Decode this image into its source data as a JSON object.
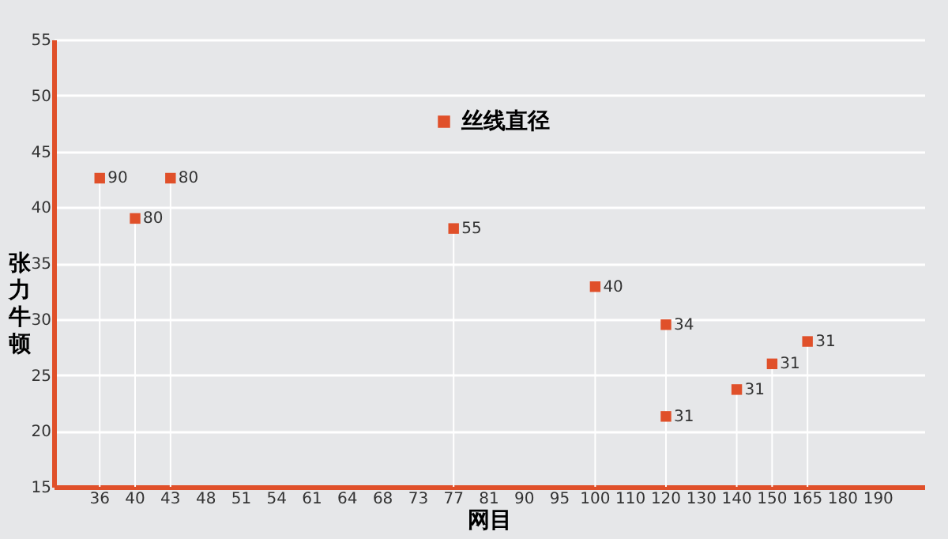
{
  "chart_data": {
    "type": "scatter",
    "xlabel": "网目",
    "ylabel": "张力牛顿",
    "categories": [
      "36",
      "40",
      "43",
      "48",
      "51",
      "54",
      "61",
      "64",
      "68",
      "73",
      "77",
      "81",
      "90",
      "95",
      "100",
      "110",
      "120",
      "130",
      "140",
      "150",
      "165",
      "180",
      "190"
    ],
    "series": [
      {
        "name": "丝线直径",
        "color": "#e0502a",
        "x": [
          "36",
          "40",
          "43",
          "77",
          "100",
          "120",
          "120",
          "140",
          "150",
          "165"
        ],
        "values": [
          42.6,
          39,
          42.6,
          38.1,
          32.9,
          29.5,
          21.3,
          23.7,
          26,
          28
        ]
      }
    ],
    "annotations": [
      {
        "text": "90",
        "x": "36",
        "y": 42.6
      },
      {
        "text": "80",
        "x": "40",
        "y": 39
      },
      {
        "text": "80",
        "x": "43",
        "y": 42.6
      },
      {
        "text": "55",
        "x": "77",
        "y": 38.1
      },
      {
        "text": "40",
        "x": "100",
        "y": 32.9
      },
      {
        "text": "34",
        "x": "120",
        "y": 29.5
      },
      {
        "text": "31",
        "x": "120",
        "y": 21.3
      },
      {
        "text": "31",
        "x": "140",
        "y": 23.7
      },
      {
        "text": "31",
        "x": "150",
        "y": 26
      },
      {
        "text": "31",
        "x": "165",
        "y": 28
      }
    ],
    "ylim": [
      15,
      55
    ],
    "yticks": [
      15,
      20,
      25,
      30,
      35,
      40,
      45,
      50,
      55
    ],
    "grid": "y",
    "legend": "top",
    "marker": "square"
  }
}
